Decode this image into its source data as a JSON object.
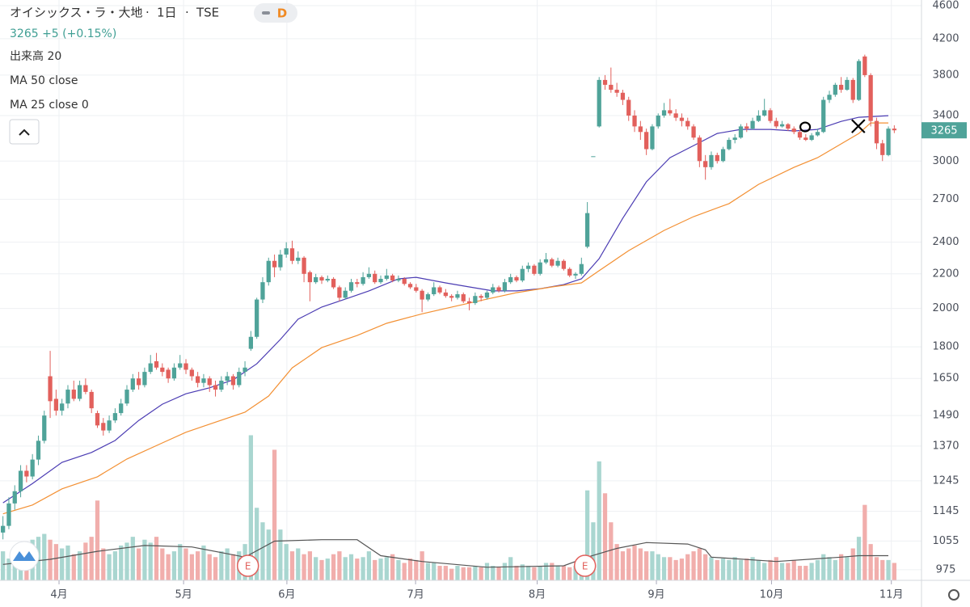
{
  "header": {
    "symbol": "オイシックス・ラ・大地",
    "interval": "1日",
    "exchange": "TSE",
    "badge": "D",
    "quote": "3265 +5 (+0.15%)"
  },
  "chart_data": {
    "type": "candlestick",
    "up_color": "#4fa399",
    "down_color": "#e2605c",
    "ohlc": [
      [
        1080,
        1130,
        1060,
        1100
      ],
      [
        1100,
        1190,
        1090,
        1170
      ],
      [
        1170,
        1230,
        1150,
        1210
      ],
      [
        1210,
        1300,
        1190,
        1280
      ],
      [
        1280,
        1300,
        1240,
        1260
      ],
      [
        1260,
        1340,
        1250,
        1320
      ],
      [
        1320,
        1410,
        1300,
        1390
      ],
      [
        1390,
        1510,
        1380,
        1490
      ],
      [
        1660,
        1780,
        1480,
        1550
      ],
      [
        1560,
        1600,
        1490,
        1510
      ],
      [
        1510,
        1560,
        1490,
        1540
      ],
      [
        1540,
        1620,
        1520,
        1600
      ],
      [
        1600,
        1640,
        1550,
        1560
      ],
      [
        1560,
        1640,
        1550,
        1620
      ],
      [
        1620,
        1650,
        1580,
        1590
      ],
      [
        1590,
        1600,
        1500,
        1520
      ],
      [
        1500,
        1510,
        1440,
        1450
      ],
      [
        1460,
        1480,
        1410,
        1430
      ],
      [
        1430,
        1490,
        1420,
        1470
      ],
      [
        1470,
        1520,
        1460,
        1500
      ],
      [
        1500,
        1560,
        1490,
        1540
      ],
      [
        1540,
        1620,
        1530,
        1600
      ],
      [
        1600,
        1670,
        1590,
        1650
      ],
      [
        1650,
        1680,
        1600,
        1620
      ],
      [
        1620,
        1700,
        1610,
        1680
      ],
      [
        1680,
        1760,
        1670,
        1720
      ],
      [
        1730,
        1770,
        1690,
        1700
      ],
      [
        1700,
        1720,
        1660,
        1680
      ],
      [
        1690,
        1700,
        1630,
        1650
      ],
      [
        1650,
        1720,
        1640,
        1700
      ],
      [
        1700,
        1760,
        1690,
        1720
      ],
      [
        1720,
        1740,
        1670,
        1690
      ],
      [
        1690,
        1700,
        1640,
        1660
      ],
      [
        1660,
        1680,
        1610,
        1630
      ],
      [
        1630,
        1670,
        1610,
        1650
      ],
      [
        1650,
        1660,
        1590,
        1620
      ],
      [
        1620,
        1640,
        1570,
        1600
      ],
      [
        1600,
        1660,
        1590,
        1640
      ],
      [
        1640,
        1680,
        1620,
        1660
      ],
      [
        1660,
        1670,
        1600,
        1620
      ],
      [
        1620,
        1700,
        1610,
        1680
      ],
      [
        1680,
        1730,
        1660,
        1700
      ],
      [
        1790,
        1880,
        1780,
        1850
      ],
      [
        1850,
        2060,
        1840,
        2050
      ],
      [
        2050,
        2180,
        2030,
        2150
      ],
      [
        2150,
        2300,
        2130,
        2280
      ],
      [
        2280,
        2320,
        2180,
        2240
      ],
      [
        2240,
        2350,
        2220,
        2320
      ],
      [
        2320,
        2400,
        2300,
        2360
      ],
      [
        2360,
        2410,
        2260,
        2280
      ],
      [
        2280,
        2340,
        2260,
        2300
      ],
      [
        2300,
        2310,
        2150,
        2200
      ],
      [
        2210,
        2220,
        2040,
        2150
      ],
      [
        2150,
        2200,
        2140,
        2180
      ],
      [
        2180,
        2190,
        2140,
        2160
      ],
      [
        2160,
        2190,
        2150,
        2170
      ],
      [
        2170,
        2180,
        2110,
        2120
      ],
      [
        2120,
        2130,
        2040,
        2060
      ],
      [
        2060,
        2120,
        2050,
        2100
      ],
      [
        2100,
        2170,
        2090,
        2150
      ],
      [
        2150,
        2170,
        2120,
        2140
      ],
      [
        2140,
        2210,
        2130,
        2180
      ],
      [
        2180,
        2240,
        2170,
        2200
      ],
      [
        2200,
        2220,
        2140,
        2150
      ],
      [
        2150,
        2190,
        2140,
        2170
      ],
      [
        2170,
        2230,
        2160,
        2190
      ],
      [
        2190,
        2200,
        2150,
        2160
      ],
      [
        2160,
        2190,
        2150,
        2170
      ],
      [
        2170,
        2180,
        2130,
        2140
      ],
      [
        2140,
        2150,
        2110,
        2120
      ],
      [
        2120,
        2140,
        2090,
        2100
      ],
      [
        2100,
        2110,
        1980,
        2050
      ],
      [
        2050,
        2090,
        2040,
        2080
      ],
      [
        2080,
        2150,
        2070,
        2120
      ],
      [
        2120,
        2130,
        2080,
        2090
      ],
      [
        2090,
        2110,
        2060,
        2070
      ],
      [
        2070,
        2080,
        2040,
        2060
      ],
      [
        2060,
        2100,
        2050,
        2080
      ],
      [
        2080,
        2090,
        2030,
        2040
      ],
      [
        2040,
        2060,
        1990,
        2030
      ],
      [
        2030,
        2090,
        2020,
        2070
      ],
      [
        2070,
        2080,
        2040,
        2060
      ],
      [
        2060,
        2100,
        2050,
        2090
      ],
      [
        2090,
        2140,
        2080,
        2120
      ],
      [
        2120,
        2130,
        2090,
        2100
      ],
      [
        2100,
        2170,
        2090,
        2150
      ],
      [
        2150,
        2200,
        2140,
        2180
      ],
      [
        2180,
        2190,
        2150,
        2160
      ],
      [
        2160,
        2250,
        2150,
        2230
      ],
      [
        2230,
        2270,
        2210,
        2250
      ],
      [
        2250,
        2260,
        2190,
        2200
      ],
      [
        2200,
        2290,
        2190,
        2270
      ],
      [
        2270,
        2330,
        2260,
        2290
      ],
      [
        2290,
        2300,
        2240,
        2250
      ],
      [
        2250,
        2300,
        2240,
        2280
      ],
      [
        2280,
        2290,
        2220,
        2230
      ],
      [
        2230,
        2240,
        2180,
        2190
      ],
      [
        2190,
        2210,
        2170,
        2200
      ],
      [
        2200,
        2300,
        2190,
        2260
      ],
      [
        2370,
        2680,
        2360,
        2600
      ],
      [
        3040,
        3040,
        3040,
        3040
      ],
      [
        3300,
        3780,
        3290,
        3750
      ],
      [
        3750,
        3800,
        3650,
        3700
      ],
      [
        3700,
        3880,
        3620,
        3650
      ],
      [
        3650,
        3720,
        3580,
        3620
      ],
      [
        3620,
        3650,
        3500,
        3550
      ],
      [
        3550,
        3580,
        3350,
        3400
      ],
      [
        3400,
        3450,
        3250,
        3300
      ],
      [
        3300,
        3350,
        3180,
        3250
      ],
      [
        3250,
        3280,
        3050,
        3100
      ],
      [
        3100,
        3320,
        3090,
        3300
      ],
      [
        3300,
        3420,
        3280,
        3400
      ],
      [
        3400,
        3520,
        3380,
        3450
      ],
      [
        3450,
        3560,
        3400,
        3420
      ],
      [
        3420,
        3460,
        3350,
        3380
      ],
      [
        3380,
        3420,
        3300,
        3350
      ],
      [
        3350,
        3380,
        3270,
        3300
      ],
      [
        3300,
        3320,
        3180,
        3200
      ],
      [
        3200,
        3220,
        2950,
        3000
      ],
      [
        3000,
        3050,
        2850,
        2950
      ],
      [
        2950,
        3080,
        2930,
        3050
      ],
      [
        3050,
        3070,
        2980,
        3000
      ],
      [
        3000,
        3120,
        2990,
        3100
      ],
      [
        3100,
        3200,
        3090,
        3180
      ],
      [
        3180,
        3230,
        3150,
        3200
      ],
      [
        3200,
        3320,
        3190,
        3300
      ],
      [
        3300,
        3330,
        3250,
        3280
      ],
      [
        3280,
        3380,
        3270,
        3350
      ],
      [
        3350,
        3450,
        3340,
        3400
      ],
      [
        3400,
        3560,
        3390,
        3450
      ],
      [
        3450,
        3470,
        3330,
        3350
      ],
      [
        3350,
        3380,
        3280,
        3300
      ],
      [
        3300,
        3350,
        3290,
        3320
      ],
      [
        3320,
        3330,
        3260,
        3280
      ],
      [
        3280,
        3300,
        3230,
        3250
      ],
      [
        3250,
        3270,
        3180,
        3200
      ],
      [
        3200,
        3230,
        3170,
        3180
      ],
      [
        3180,
        3240,
        3170,
        3220
      ],
      [
        3220,
        3280,
        3210,
        3250
      ],
      [
        3250,
        3580,
        3240,
        3550
      ],
      [
        3550,
        3640,
        3520,
        3600
      ],
      [
        3600,
        3720,
        3580,
        3700
      ],
      [
        3700,
        3780,
        3620,
        3650
      ],
      [
        3650,
        3780,
        3640,
        3750
      ],
      [
        3750,
        3770,
        3520,
        3550
      ],
      [
        3550,
        3970,
        3540,
        3950
      ],
      [
        4000,
        4020,
        3780,
        3800
      ],
      [
        3800,
        3820,
        3300,
        3350
      ],
      [
        3350,
        3380,
        3100,
        3150
      ],
      [
        3150,
        3180,
        3000,
        3050
      ],
      [
        3050,
        3300,
        3040,
        3280
      ],
      [
        3280,
        3310,
        3240,
        3265
      ]
    ],
    "volume": {
      "ylim": [
        0,
        400
      ],
      "up_color": "#a9d6d0",
      "down_color": "#f1aeac",
      "values": [
        20,
        15,
        22,
        25,
        18,
        28,
        30,
        32,
        28,
        25,
        22,
        24,
        18,
        20,
        26,
        30,
        55,
        22,
        18,
        20,
        24,
        26,
        30,
        22,
        28,
        26,
        30,
        22,
        18,
        20,
        25,
        22,
        18,
        20,
        24,
        18,
        16,
        20,
        22,
        18,
        20,
        25,
        100,
        50,
        40,
        35,
        90,
        35,
        25,
        20,
        22,
        18,
        20,
        16,
        14,
        15,
        18,
        20,
        16,
        18,
        15,
        16,
        20,
        14,
        15,
        16,
        18,
        14,
        12,
        15,
        14,
        20,
        12,
        12,
        10,
        10,
        8,
        10,
        9,
        9,
        10,
        9,
        12,
        10,
        9,
        12,
        16,
        10,
        11,
        10,
        9,
        10,
        12,
        12,
        10,
        10,
        9,
        10,
        14,
        62,
        40,
        82,
        60,
        40,
        25,
        20,
        22,
        24,
        22,
        20,
        20,
        18,
        16,
        16,
        14,
        15,
        18,
        20,
        22,
        18,
        16,
        14,
        15,
        14,
        16,
        14,
        15,
        16,
        14,
        12,
        14,
        16,
        12,
        12,
        14,
        10,
        10,
        12,
        14,
        18,
        16,
        14,
        18,
        16,
        22,
        30,
        52,
        25,
        16,
        14,
        14,
        12
      ]
    },
    "lines": [
      {
        "name": "MA 25 close 0",
        "color": "#4b3cb3",
        "x": [
          0,
          5,
          10,
          15,
          19,
          23,
          27,
          31,
          35,
          39,
          43,
          47,
          50,
          54,
          58,
          62,
          67,
          70,
          75,
          79,
          83,
          87,
          91,
          95,
          98,
          101,
          105,
          109,
          113,
          117,
          121,
          125,
          130,
          134,
          138,
          142,
          145,
          150
        ],
        "values": [
          1172,
          1236,
          1310,
          1346,
          1391,
          1470,
          1537,
          1582,
          1608,
          1644,
          1718,
          1837,
          1942,
          2008,
          2052,
          2099,
          2170,
          2179,
          2146,
          2122,
          2099,
          2099,
          2112,
          2136,
          2170,
          2294,
          2563,
          2833,
          3028,
          3131,
          3237,
          3273,
          3273,
          3259,
          3273,
          3346,
          3384,
          3399
        ]
      },
      {
        "name": "MA 50 close",
        "color": "#f39033",
        "x": [
          0,
          5,
          10,
          16,
          21,
          27,
          31,
          35,
          41,
          45,
          49,
          54,
          60,
          65,
          71,
          76,
          82,
          87,
          93,
          98,
          101,
          106,
          112,
          117,
          123,
          128,
          134,
          138,
          142,
          145,
          147,
          150
        ],
        "values": [
          1137,
          1165,
          1218,
          1259,
          1322,
          1382,
          1423,
          1455,
          1504,
          1572,
          1699,
          1796,
          1857,
          1920,
          1971,
          2008,
          2052,
          2089,
          2122,
          2146,
          2219,
          2345,
          2479,
          2575,
          2669,
          2814,
          2948,
          3028,
          3145,
          3237,
          3332,
          3332
        ]
      },
      {
        "name": "出来高 20",
        "color": "#555555",
        "axis": "volume",
        "x": [
          0,
          8,
          16,
          24,
          32,
          41,
          46,
          54,
          60,
          64,
          71,
          82,
          95,
          99,
          104,
          109,
          116,
          119,
          120,
          131,
          142,
          145,
          150
        ],
        "values": [
          11,
          14.5,
          20,
          24,
          23,
          16,
          27,
          28,
          28,
          17,
          13,
          9,
          10,
          16,
          22,
          26,
          25,
          21,
          16,
          13,
          16,
          17,
          17
        ]
      }
    ],
    "xlim": [
      -0.5,
      151.5
    ],
    "xticks": [
      {
        "value": 9.5,
        "label": "4月"
      },
      {
        "value": 30.6,
        "label": "5月"
      },
      {
        "value": 48.1,
        "label": "6月"
      },
      {
        "value": 69.9,
        "label": "7月"
      },
      {
        "value": 90.5,
        "label": "8月"
      },
      {
        "value": 110.7,
        "label": "9月"
      },
      {
        "value": 130.2,
        "label": "10月"
      },
      {
        "value": 150.5,
        "label": "11月"
      }
    ],
    "ylim": [
      947,
      4672
    ],
    "log_scale": true,
    "yticks": [
      975,
      1055,
      1145,
      1245,
      1370,
      1490,
      1650,
      1800,
      2000,
      2200,
      2400,
      2700,
      3000,
      3400,
      3800,
      4200,
      4600
    ],
    "grid": true,
    "last_price": {
      "value": 3265,
      "label": "3265"
    },
    "events": [
      {
        "x": 41.5,
        "label": "E"
      },
      {
        "x": 98.6,
        "label": "E"
      }
    ],
    "markers": [
      {
        "x": 135.9,
        "y": 3295,
        "shape": "circle"
      },
      {
        "x": 144.9,
        "y": 3302,
        "shape": "cross"
      }
    ]
  }
}
